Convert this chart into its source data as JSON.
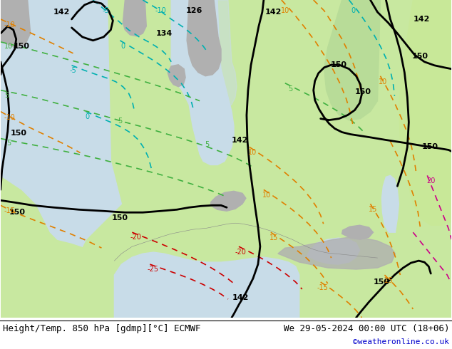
{
  "title_left": "Height/Temp. 850 hPa [gdmp][°C] ECMWF",
  "title_right": "We 29-05-2024 00:00 UTC (18+06)",
  "copyright": "©weatheronline.co.uk",
  "fig_width": 6.34,
  "fig_height": 4.9,
  "dpi": 100,
  "text_color": "#000000",
  "copyright_color": "#0000cc",
  "font_size_title": 9,
  "font_size_copyright": 8,
  "bg_land": "#c8e8a0",
  "bg_sea": "#c8dce8",
  "bg_gray": "#b0b0b0",
  "color_black": "#000000",
  "color_cyan": "#00b0b0",
  "color_green": "#40b040",
  "color_orange": "#e08000",
  "color_red": "#cc0000",
  "color_pink": "#cc0088"
}
